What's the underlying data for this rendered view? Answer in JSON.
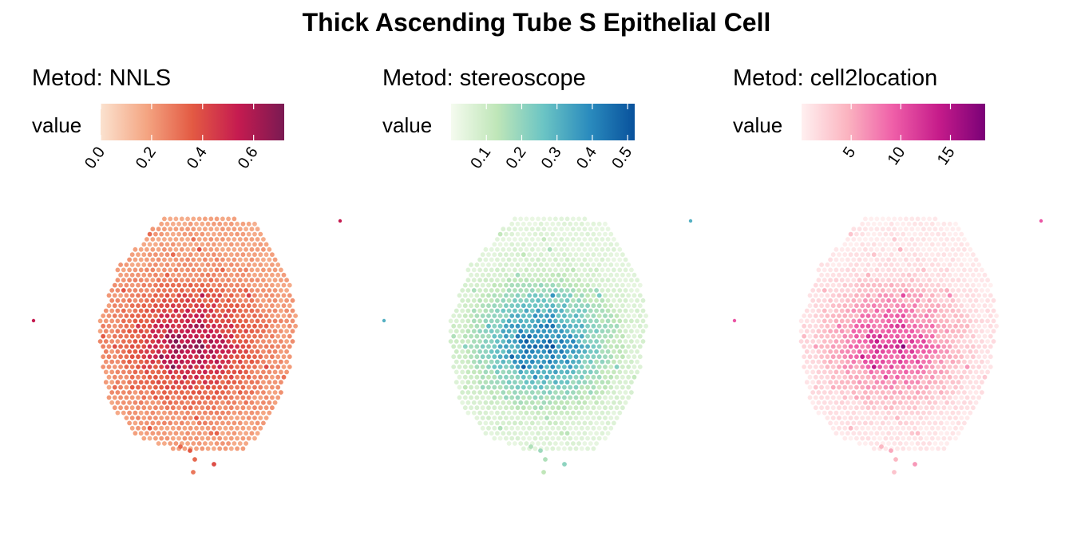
{
  "chart_data": {
    "type": "heatmap",
    "title": "Thick Ascending Tube S Epithelial Cell",
    "panels": [
      {
        "title": "Metod: NNLS",
        "legend_label": "value",
        "scale_range": [
          0.0,
          0.72
        ],
        "ticks": [
          0.0,
          0.2,
          0.4,
          0.6
        ],
        "tick_labels": [
          "0.0",
          "0.2",
          "0.4",
          "0.6"
        ],
        "colormap": [
          "#fbe2cf",
          "#f4a582",
          "#e35a43",
          "#c51b50",
          "#7a1a52"
        ],
        "hotspot_peak_value": 0.6,
        "background_value": 0.18
      },
      {
        "title": "Metod: stereoscope",
        "legend_label": "value",
        "scale_range": [
          0.0,
          0.52
        ],
        "ticks": [
          0.1,
          0.2,
          0.3,
          0.4,
          0.5
        ],
        "tick_labels": [
          "0.1",
          "0.2",
          "0.3",
          "0.4",
          "0.5"
        ],
        "colormap": [
          "#f5fbef",
          "#bfe6b8",
          "#6cc5c4",
          "#2b8cbe",
          "#08519c"
        ],
        "hotspot_peak_value": 0.42,
        "background_value": 0.05
      },
      {
        "title": "Metod: cell2location",
        "legend_label": "value",
        "scale_range": [
          0.0,
          18.5
        ],
        "ticks": [
          5,
          10,
          15
        ],
        "tick_labels": [
          "5",
          "10",
          "15"
        ],
        "colormap": [
          "#fff0f0",
          "#fbb4c0",
          "#ef5ea8",
          "#c51b8a",
          "#7a0177"
        ],
        "hotspot_peak_value": 11,
        "background_value": 0.6
      }
    ],
    "legend_placement": "top",
    "grid": false
  }
}
